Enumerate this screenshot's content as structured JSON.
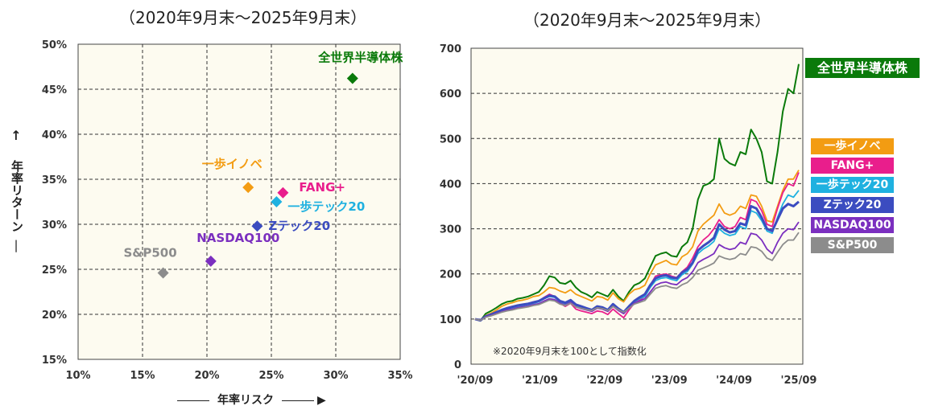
{
  "left_title": "（2020年9月末～2025年9月末）",
  "right_title": "（2020年9月末～2025年9月末）",
  "chart_data": [
    {
      "type": "scatter",
      "xlabel": "年率リスク",
      "ylabel": "年率リターン",
      "xlim": [
        0.1,
        0.35
      ],
      "ylim": [
        0.15,
        0.5
      ],
      "x_ticks": [
        "10%",
        "15%",
        "20%",
        "25%",
        "30%",
        "35%"
      ],
      "y_ticks": [
        "50%",
        "45%",
        "40%",
        "35%",
        "30%",
        "25%",
        "20%",
        "15%"
      ],
      "grid": true,
      "points": [
        {
          "label": "全世界半導体株",
          "x": 0.313,
          "y": 0.462,
          "color": "#0a7a0a"
        },
        {
          "label": "一歩イノベ",
          "x": 0.232,
          "y": 0.341,
          "color": "#f39c12"
        },
        {
          "label": "FANG+",
          "x": 0.259,
          "y": 0.335,
          "color": "#e91e8c"
        },
        {
          "label": "一歩テック20",
          "x": 0.254,
          "y": 0.325,
          "color": "#1fb1e0"
        },
        {
          "label": "Zテック20",
          "x": 0.239,
          "y": 0.298,
          "color": "#3b4cc0"
        },
        {
          "label": "NASDAQ100",
          "x": 0.203,
          "y": 0.259,
          "color": "#7b2fbf"
        },
        {
          "label": "S&P500",
          "x": 0.166,
          "y": 0.246,
          "color": "#8c8c8c"
        }
      ]
    },
    {
      "type": "line",
      "ylim": [
        0,
        700
      ],
      "y_ticks": [
        "700",
        "600",
        "500",
        "400",
        "300",
        "200",
        "100",
        "0"
      ],
      "x_ticks": [
        "'20/09",
        "'21/09",
        "'22/09",
        "'23/09",
        "'24/09",
        "'25/09"
      ],
      "grid": true,
      "note": "※2020年9月末を100として指数化",
      "legend": [
        "全世界半導体株",
        "一歩イノベ",
        "FANG+",
        "一歩テック20",
        "Zテック20",
        "NASDAQ100",
        "S&P500"
      ],
      "series": [
        {
          "name": "全世界半導体株",
          "color": "#0a7a0a",
          "width": 2,
          "values": [
            100,
            96,
            112,
            118,
            125,
            133,
            138,
            140,
            145,
            147,
            150,
            155,
            160,
            175,
            195,
            192,
            180,
            178,
            185,
            170,
            160,
            155,
            148,
            160,
            155,
            150,
            165,
            150,
            140,
            160,
            175,
            180,
            190,
            215,
            240,
            245,
            248,
            240,
            238,
            260,
            270,
            300,
            365,
            395,
            400,
            410,
            500,
            455,
            445,
            440,
            470,
            465,
            520,
            500,
            470,
            405,
            400,
            470,
            560,
            610,
            600,
            665
          ]
        },
        {
          "name": "一歩イノベ",
          "color": "#f39c12",
          "width": 1.8,
          "values": [
            100,
            97,
            108,
            113,
            120,
            128,
            133,
            136,
            140,
            142,
            145,
            150,
            152,
            160,
            170,
            168,
            162,
            158,
            165,
            155,
            150,
            145,
            140,
            150,
            148,
            142,
            158,
            145,
            138,
            155,
            165,
            168,
            175,
            200,
            220,
            225,
            230,
            222,
            220,
            238,
            245,
            260,
            295,
            310,
            320,
            330,
            355,
            335,
            330,
            335,
            350,
            345,
            375,
            372,
            350,
            318,
            315,
            350,
            385,
            410,
            410,
            430
          ]
        },
        {
          "name": "FANG+",
          "color": "#e91e8c",
          "width": 1.8,
          "values": [
            100,
            97,
            106,
            110,
            115,
            120,
            125,
            128,
            130,
            132,
            134,
            138,
            140,
            148,
            155,
            150,
            135,
            128,
            135,
            122,
            118,
            115,
            112,
            118,
            116,
            110,
            122,
            112,
            103,
            120,
            135,
            142,
            150,
            175,
            195,
            198,
            200,
            195,
            192,
            205,
            215,
            235,
            260,
            275,
            285,
            300,
            320,
            305,
            300,
            305,
            325,
            320,
            365,
            360,
            340,
            310,
            305,
            345,
            380,
            400,
            395,
            425
          ]
        },
        {
          "name": "一歩テック20",
          "color": "#1fb1e0",
          "width": 1.8,
          "values": [
            100,
            97,
            105,
            109,
            114,
            118,
            122,
            125,
            128,
            130,
            132,
            135,
            138,
            145,
            150,
            148,
            138,
            134,
            140,
            130,
            126,
            122,
            118,
            125,
            123,
            118,
            130,
            120,
            112,
            125,
            138,
            145,
            150,
            170,
            185,
            190,
            192,
            188,
            185,
            198,
            205,
            222,
            245,
            255,
            262,
            272,
            300,
            290,
            285,
            288,
            305,
            300,
            340,
            335,
            318,
            295,
            290,
            325,
            355,
            375,
            370,
            385
          ]
        },
        {
          "name": "Zテック20",
          "color": "#3b4cc0",
          "width": 3,
          "values": [
            100,
            97,
            106,
            110,
            115,
            120,
            124,
            127,
            130,
            132,
            134,
            137,
            140,
            146,
            152,
            150,
            140,
            136,
            142,
            132,
            128,
            124,
            120,
            128,
            126,
            120,
            133,
            123,
            115,
            128,
            140,
            148,
            155,
            175,
            190,
            195,
            197,
            192,
            190,
            203,
            210,
            225,
            252,
            262,
            270,
            280,
            310,
            298,
            292,
            295,
            312,
            308,
            350,
            345,
            325,
            300,
            295,
            320,
            345,
            355,
            350,
            360
          ]
        },
        {
          "name": "NASDAQ100",
          "color": "#7b2fbf",
          "width": 1.8,
          "values": [
            100,
            97,
            105,
            108,
            112,
            116,
            120,
            122,
            125,
            127,
            129,
            132,
            134,
            140,
            145,
            143,
            135,
            131,
            137,
            127,
            123,
            120,
            117,
            124,
            122,
            117,
            128,
            119,
            112,
            124,
            135,
            140,
            145,
            160,
            175,
            180,
            182,
            178,
            176,
            186,
            192,
            205,
            225,
            232,
            238,
            245,
            265,
            258,
            254,
            257,
            270,
            266,
            290,
            287,
            275,
            255,
            245,
            270,
            290,
            300,
            298,
            315
          ]
        },
        {
          "name": "S&P500",
          "color": "#8c8c8c",
          "width": 1.8,
          "values": [
            100,
            97,
            104,
            107,
            111,
            115,
            118,
            120,
            123,
            125,
            127,
            130,
            132,
            137,
            142,
            140,
            133,
            130,
            135,
            127,
            124,
            121,
            119,
            125,
            123,
            119,
            128,
            121,
            115,
            124,
            133,
            137,
            141,
            155,
            168,
            172,
            174,
            170,
            168,
            176,
            181,
            192,
            208,
            213,
            218,
            224,
            240,
            235,
            232,
            235,
            245,
            242,
            260,
            258,
            250,
            235,
            230,
            248,
            265,
            275,
            275,
            292
          ]
        }
      ]
    }
  ]
}
